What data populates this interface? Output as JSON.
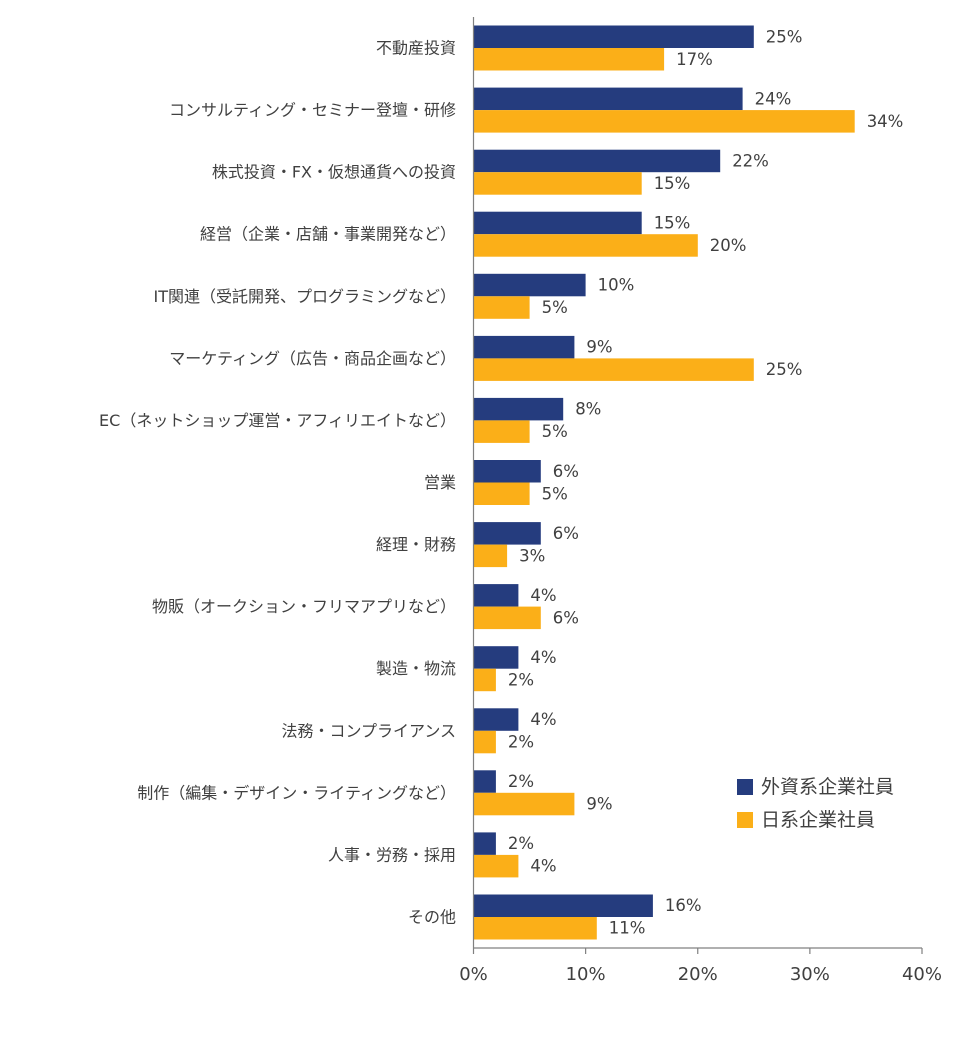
{
  "chart_data": {
    "type": "bar",
    "orientation": "horizontal",
    "categories": [
      "不動産投資",
      "コンサルティング・セミナー登壇・研修",
      "株式投資・FX・仮想通貨への投資",
      "経営（企業・店舗・事業開発など）",
      "IT関連（受託開発、プログラミングなど）",
      "マーケティング（広告・商品企画など）",
      "EC（ネットショップ運営・アフィリエイトなど）",
      "営業",
      "経理・財務",
      "物販（オークション・フリマアプリなど）",
      "製造・物流",
      "法務・コンプライアンス",
      "制作（編集・デザイン・ライティングなど）",
      "人事・労務・採用",
      "その他"
    ],
    "series": [
      {
        "name": "外資系企業社員",
        "color": "#253C7E",
        "values": [
          25,
          24,
          22,
          15,
          10,
          9,
          8,
          6,
          6,
          4,
          4,
          4,
          2,
          2,
          16
        ],
        "labels": [
          "25%",
          "24%",
          "22%",
          "15%",
          "10%",
          "9%",
          "8%",
          "6%",
          "6%",
          "4%",
          "4%",
          "4%",
          "2%",
          "2%",
          "16%"
        ]
      },
      {
        "name": "日系企業社員",
        "color": "#FBAF18",
        "values": [
          17,
          34,
          15,
          20,
          5,
          25,
          5,
          5,
          3,
          6,
          2,
          2,
          9,
          4,
          11
        ],
        "labels": [
          "17%",
          "34%",
          "15%",
          "20%",
          "5%",
          "25%",
          "5%",
          "5%",
          "3%",
          "6%",
          "2%",
          "2%",
          "9%",
          "4%",
          "11%"
        ]
      }
    ],
    "xlim": [
      0,
      40
    ],
    "x_ticks": [
      0,
      10,
      20,
      30,
      40
    ],
    "x_tick_labels": [
      "0%",
      "10%",
      "20%",
      "30%",
      "40%"
    ],
    "legend_position": "right",
    "grid": false
  }
}
